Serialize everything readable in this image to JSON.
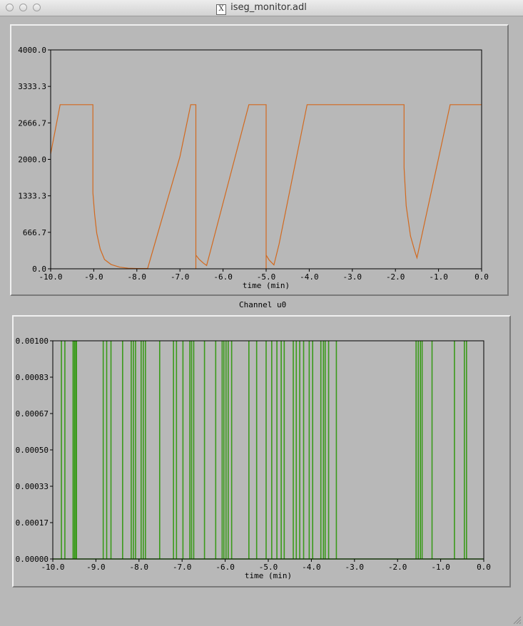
{
  "window": {
    "title": "iseg_monitor.adl"
  },
  "colors": {
    "voltage_trace": "#d2691e",
    "status_trace": "#3a9a1a"
  },
  "charts": {
    "caption": "Channel u0"
  },
  "chart_data": [
    {
      "type": "line",
      "title": "",
      "xlabel": "time (min)",
      "ylabel": "",
      "xlim": [
        -10.0,
        0.0
      ],
      "ylim": [
        0.0,
        4000.0
      ],
      "x_ticks": [
        "-10.0",
        "-9.0",
        "-8.0",
        "-7.0",
        "-6.0",
        "-5.0",
        "-4.0",
        "-3.0",
        "-2.0",
        "-1.0",
        "0.0"
      ],
      "y_ticks": [
        "0.0",
        "666.7",
        "1333.3",
        "2000.0",
        "2666.7",
        "3333.3",
        "4000.0"
      ],
      "series": [
        {
          "x": [
            -10.0,
            -9.78,
            -9.02,
            -9.02,
            -8.98,
            -8.93,
            -8.85,
            -8.75,
            -8.6,
            -8.4,
            -8.2,
            -8.0,
            -7.75,
            -7.0,
            -6.75,
            -6.63,
            -6.63,
            -6.63,
            -6.55,
            -6.45,
            -6.38,
            -5.4,
            -5.0,
            -5.0,
            -5.0,
            -4.93,
            -4.82,
            -4.7,
            -4.05,
            -1.8,
            -1.8,
            -1.75,
            -1.65,
            -1.55,
            -1.5,
            -0.73,
            0.0
          ],
          "y": [
            2100,
            3000,
            3000,
            1390,
            1000,
            650,
            360,
            170,
            80,
            30,
            10,
            5,
            5,
            2050,
            3000,
            3000,
            0,
            250,
            170,
            100,
            60,
            3000,
            3000,
            0,
            250,
            160,
            70,
            450,
            3000,
            3000,
            1850,
            1150,
            600,
            320,
            200,
            3000,
            3000
          ]
        }
      ]
    },
    {
      "type": "line",
      "title": "",
      "xlabel": "time (min)",
      "ylabel": "",
      "xlim": [
        -10.0,
        0.0
      ],
      "ylim": [
        0.0,
        0.001
      ],
      "x_ticks": [
        "-10.0",
        "-9.0",
        "-8.0",
        "-7.0",
        "-6.0",
        "-5.0",
        "-4.0",
        "-3.0",
        "-2.0",
        "-1.0",
        "0.0"
      ],
      "y_ticks": [
        "0.00000",
        "0.00017",
        "0.00033",
        "0.00050",
        "0.00067",
        "0.00083",
        "0.00100"
      ],
      "series": [
        {
          "pulse_x": [
            -9.8,
            -9.72,
            -9.53,
            -9.5,
            -9.47,
            -9.45,
            -8.83,
            -8.75,
            -8.65,
            -8.38,
            -8.18,
            -8.13,
            -8.08,
            -7.95,
            -7.9,
            -7.85,
            -7.52,
            -7.2,
            -7.13,
            -6.98,
            -6.82,
            -6.78,
            -6.73,
            -6.48,
            -6.22,
            -6.07,
            -6.03,
            -5.98,
            -5.93,
            -5.85,
            -5.45,
            -5.27,
            -5.05,
            -4.92,
            -4.8,
            -4.7,
            -4.63,
            -4.42,
            -4.35,
            -4.27,
            -4.18,
            -4.05,
            -3.97,
            -3.78,
            -3.72,
            -3.68,
            -3.6,
            -3.42,
            -1.57,
            -1.52,
            -1.47,
            -1.43,
            -1.2,
            -0.68,
            -0.45,
            -0.4
          ],
          "baseline": 0.0,
          "peak": 0.001
        }
      ]
    }
  ]
}
